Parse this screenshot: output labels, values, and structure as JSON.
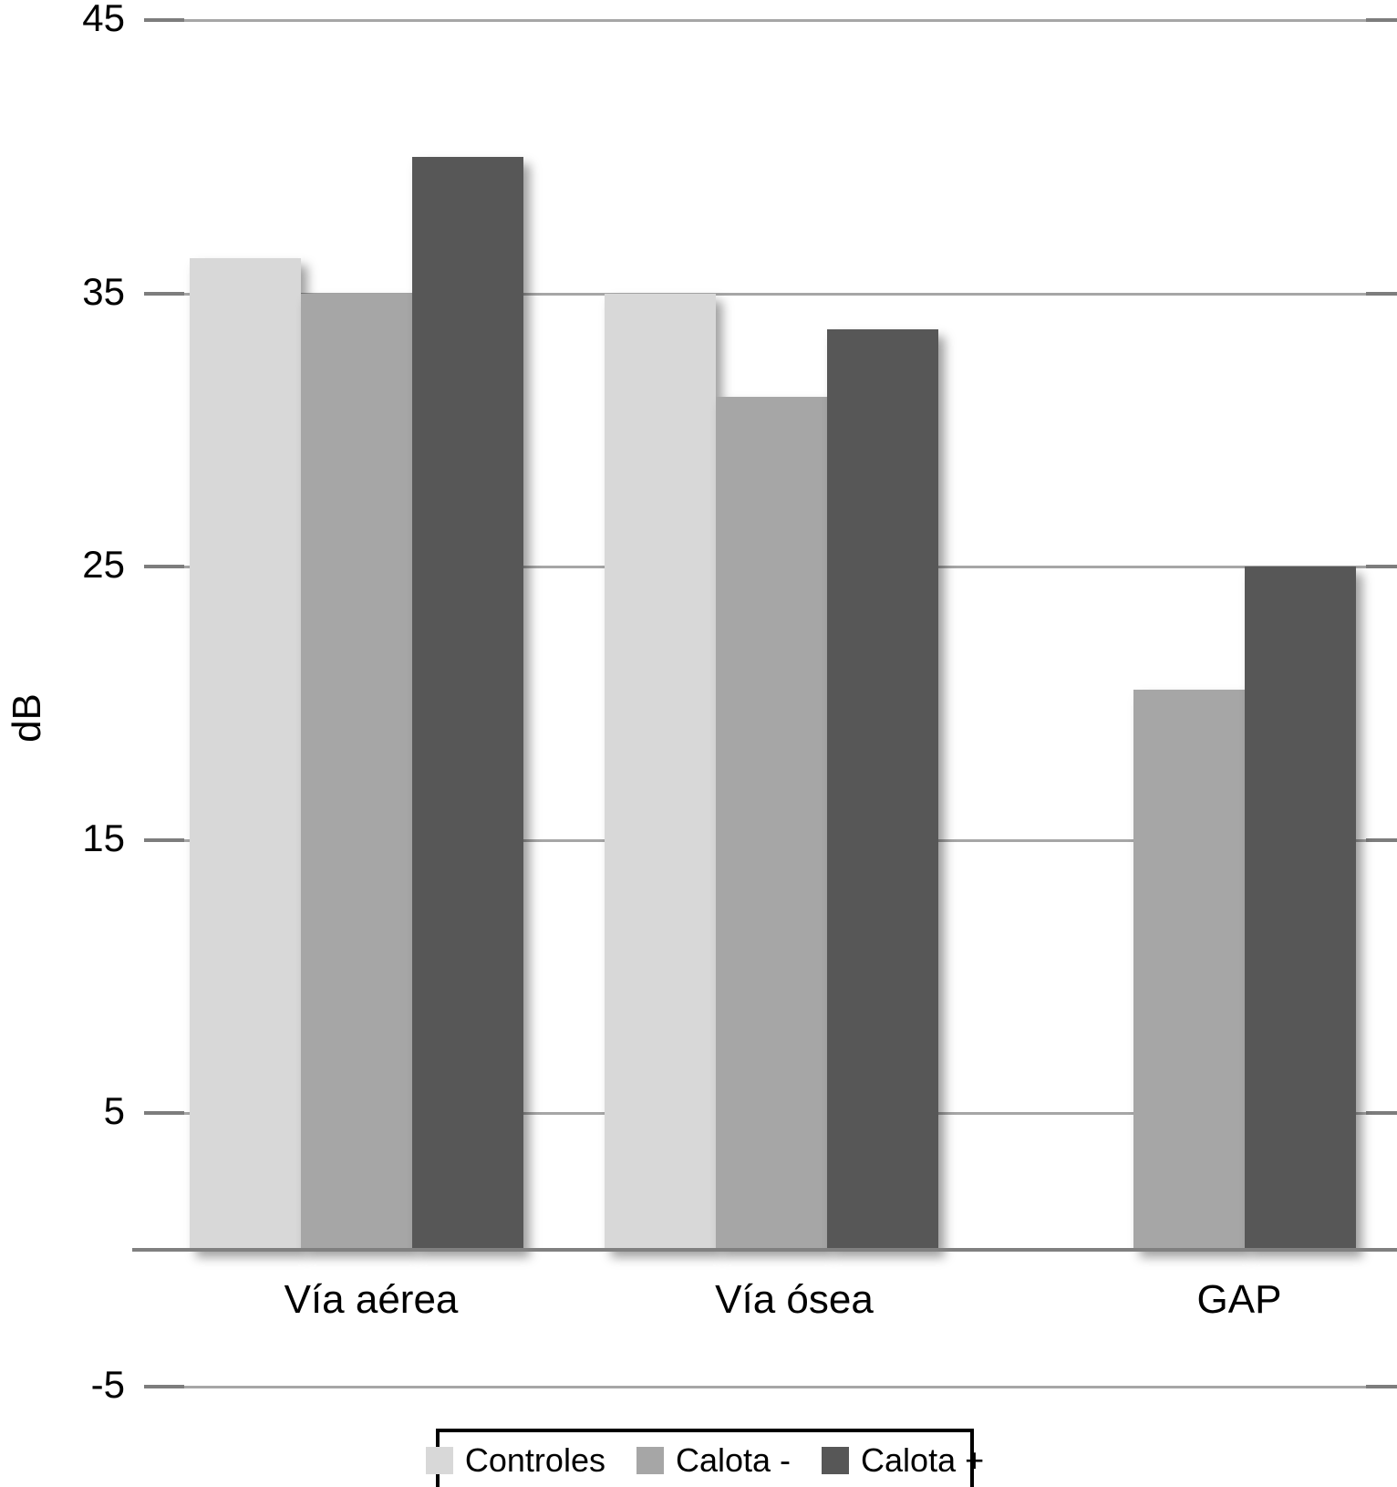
{
  "chart_data": {
    "type": "bar",
    "title": "",
    "xlabel": "",
    "ylabel": "dB",
    "categories": [
      "Vía aérea",
      "Vía ósea",
      "GAP"
    ],
    "series": [
      {
        "name": "Controles",
        "color": "#d8d8d8",
        "values": [
          36.3,
          35,
          0
        ]
      },
      {
        "name": "Calota -",
        "color": "#a6a6a6",
        "values": [
          35,
          31.2,
          20.5
        ]
      },
      {
        "name": "Calota +",
        "color": "#575757",
        "values": [
          40,
          33.7,
          25
        ]
      }
    ],
    "ylim": [
      -5,
      45
    ],
    "yticks": [
      45,
      35,
      25,
      15,
      5,
      -5
    ],
    "grid": true,
    "legend_position": "bottom",
    "axis_color": "#808080",
    "grid_color": "#a6a6a6"
  }
}
